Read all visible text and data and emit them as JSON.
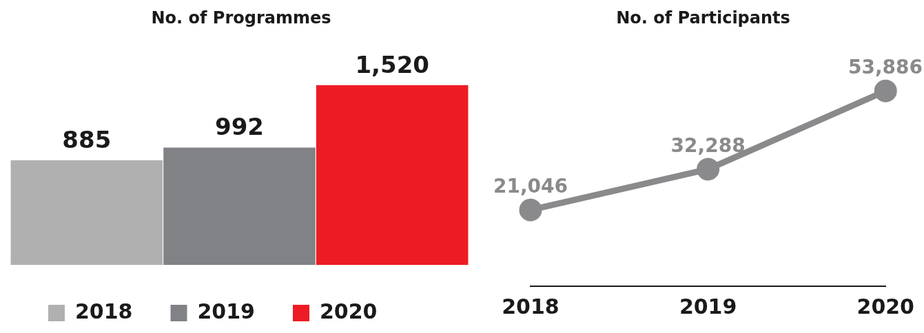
{
  "chart_data": [
    {
      "type": "bar",
      "title": "No. of Programmes",
      "categories": [
        null
      ],
      "series": [
        {
          "name": "2018",
          "color": "#b0b0b0",
          "values": [
            885
          ],
          "value_labels": [
            "885"
          ]
        },
        {
          "name": "2019",
          "color": "#818285",
          "values": [
            992
          ],
          "value_labels": [
            "992"
          ]
        },
        {
          "name": "2020",
          "color": "#ed1c24",
          "values": [
            1520
          ],
          "value_labels": [
            "1,520"
          ]
        }
      ],
      "legend": "bottom",
      "grid": false,
      "tick_labels": false
    },
    {
      "type": "line",
      "title": "No. of Participants",
      "categories": [
        "2018",
        "2019",
        "2020"
      ],
      "series": [
        {
          "color": "#8a8a8c",
          "values": [
            21046,
            32288,
            53886
          ],
          "value_labels": [
            "21,046",
            "32,288",
            "53,886"
          ]
        }
      ],
      "marker": "circle",
      "grid": false,
      "tick_labels": "x"
    }
  ]
}
